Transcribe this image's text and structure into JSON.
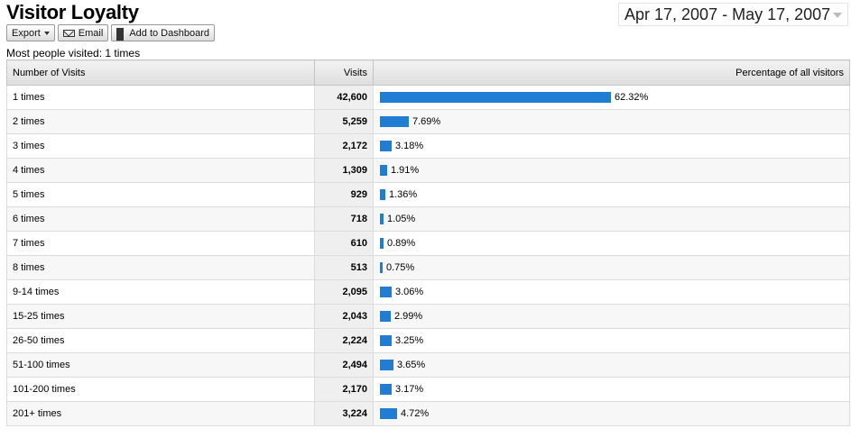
{
  "page": {
    "title": "Visitor Loyalty",
    "date_range": "Apr 17, 2007 - May 17, 2007",
    "summary": "Most people visited: 1 times"
  },
  "toolbar": {
    "export_label": "Export",
    "email_label": "Email",
    "dashboard_label": "Add to Dashboard"
  },
  "table": {
    "headers": {
      "number_of_visits": "Number of Visits",
      "visits": "Visits",
      "percentage": "Percentage of all visitors"
    },
    "rows": [
      {
        "label": "1 times",
        "visits": "42,600",
        "pct_label": "62.32%",
        "pct": 62.32
      },
      {
        "label": "2 times",
        "visits": "5,259",
        "pct_label": "7.69%",
        "pct": 7.69
      },
      {
        "label": "3 times",
        "visits": "2,172",
        "pct_label": "3.18%",
        "pct": 3.18
      },
      {
        "label": "4 times",
        "visits": "1,309",
        "pct_label": "1.91%",
        "pct": 1.91
      },
      {
        "label": "5 times",
        "visits": "929",
        "pct_label": "1.36%",
        "pct": 1.36
      },
      {
        "label": "6 times",
        "visits": "718",
        "pct_label": "1.05%",
        "pct": 1.05
      },
      {
        "label": "7 times",
        "visits": "610",
        "pct_label": "0.89%",
        "pct": 0.89
      },
      {
        "label": "8 times",
        "visits": "513",
        "pct_label": "0.75%",
        "pct": 0.75
      },
      {
        "label": "9-14 times",
        "visits": "2,095",
        "pct_label": "3.06%",
        "pct": 3.06
      },
      {
        "label": "15-25 times",
        "visits": "2,043",
        "pct_label": "2.99%",
        "pct": 2.99
      },
      {
        "label": "26-50 times",
        "visits": "2,224",
        "pct_label": "3.25%",
        "pct": 3.25
      },
      {
        "label": "51-100 times",
        "visits": "2,494",
        "pct_label": "3.65%",
        "pct": 3.65
      },
      {
        "label": "101-200 times",
        "visits": "2,170",
        "pct_label": "3.17%",
        "pct": 3.17
      },
      {
        "label": "201+ times",
        "visits": "3,224",
        "pct_label": "4.72%",
        "pct": 4.72
      }
    ]
  },
  "colors": {
    "bar": "#1f7dd4"
  }
}
